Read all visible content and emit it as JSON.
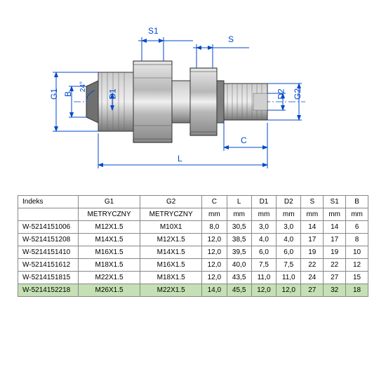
{
  "diagram": {
    "labels": {
      "G1": "G1",
      "G2": "G2",
      "D1": "D1",
      "D2": "D2",
      "S": "S",
      "S1": "S1",
      "B": "B",
      "C": "C",
      "L": "L",
      "angle": "24°"
    },
    "colors": {
      "dim": "#0049c9",
      "body_light": "#e8e8e8",
      "body_mid": "#a8a8a8",
      "body_dark": "#555555"
    }
  },
  "table": {
    "columns": [
      "Indeks",
      "G1",
      "G2",
      "C",
      "L",
      "D1",
      "D2",
      "S",
      "S1",
      "B"
    ],
    "unit_row": [
      "",
      "METRYCZNY",
      "METRYCZNY",
      "mm",
      "mm",
      "mm",
      "mm",
      "mm",
      "mm",
      "mm"
    ],
    "rows": [
      [
        "W-5214151006",
        "M12X1.5",
        "M10X1",
        "8,0",
        "30,5",
        "3,0",
        "3,0",
        "14",
        "14",
        "6"
      ],
      [
        "W-5214151208",
        "M14X1.5",
        "M12X1.5",
        "12,0",
        "38,5",
        "4,0",
        "4,0",
        "17",
        "17",
        "8"
      ],
      [
        "W-5214151410",
        "M16X1.5",
        "M14X1.5",
        "12,0",
        "39,5",
        "6,0",
        "6,0",
        "19",
        "19",
        "10"
      ],
      [
        "W-5214151612",
        "M18X1.5",
        "M16X1.5",
        "12,0",
        "40,0",
        "7,5",
        "7,5",
        "22",
        "22",
        "12"
      ],
      [
        "W-5214151815",
        "M22X1.5",
        "M18X1.5",
        "12,0",
        "43,5",
        "11,0",
        "11,0",
        "24",
        "27",
        "15"
      ],
      [
        "W-5214152218",
        "M26X1.5",
        "M22X1.5",
        "14,0",
        "45,5",
        "12,0",
        "12,0",
        "27",
        "32",
        "18"
      ]
    ],
    "highlight_row": 5,
    "highlight_color": "#c5e0b4",
    "border_color": "#888888",
    "font_size": 10
  }
}
